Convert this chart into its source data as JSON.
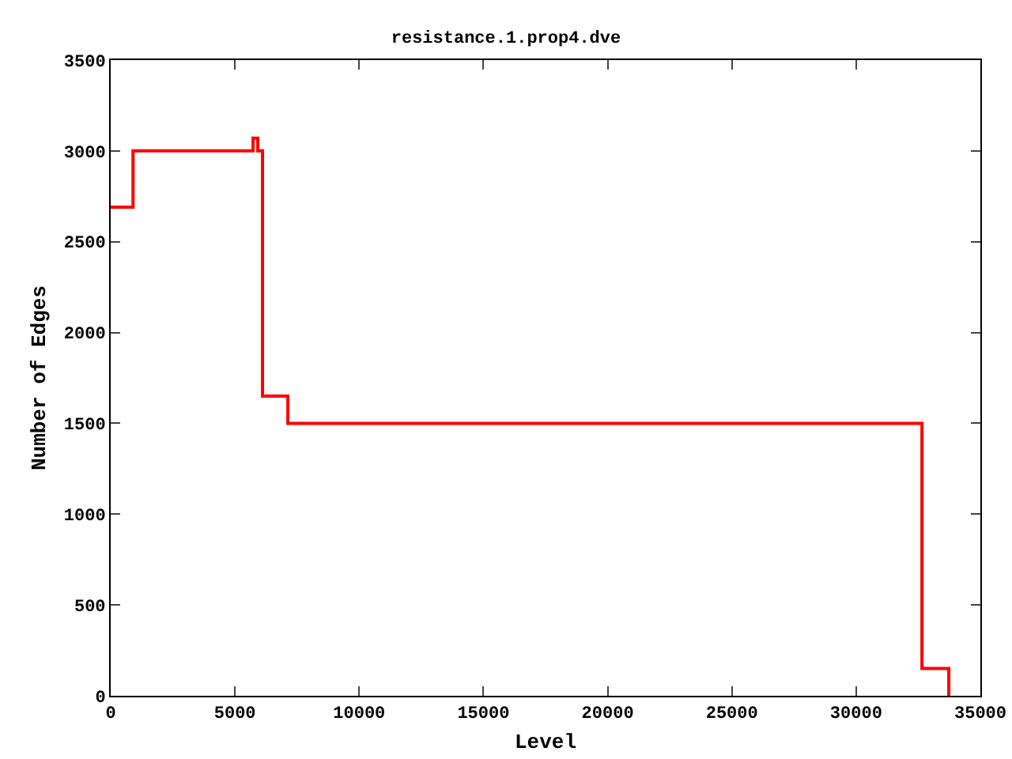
{
  "chart_data": {
    "type": "step",
    "title": "resistance.1.prop4.dve",
    "xlabel": "Level",
    "ylabel": "Number of Edges",
    "x": [
      0,
      900,
      5730,
      5920,
      6110,
      7130,
      32650,
      33730
    ],
    "series": [
      {
        "color": "#ff0000",
        "values": [
          2690,
          3000,
          3070,
          3000,
          1650,
          1500,
          150,
          0
        ]
      }
    ],
    "xlim": [
      0,
      35000
    ],
    "xticks": [
      0,
      5000,
      10000,
      15000,
      20000,
      25000,
      30000,
      35000
    ],
    "ylim": [
      0,
      3500
    ],
    "yticks": [
      0,
      500,
      1000,
      1500,
      2000,
      2500,
      3000,
      3500
    ],
    "grid": false
  }
}
